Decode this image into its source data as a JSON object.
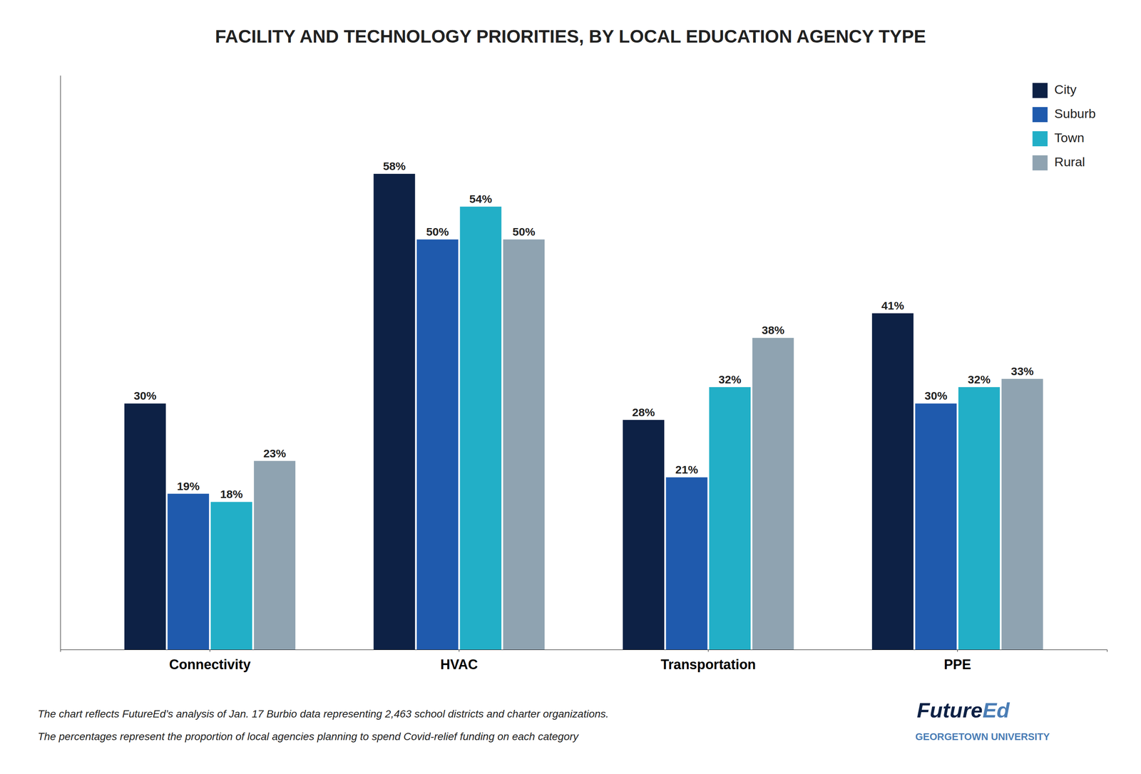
{
  "chart_data": {
    "type": "bar",
    "title": "FACILITY AND TECHNOLOGY PRIORITIES, BY LOCAL EDUCATION AGENCY TYPE",
    "categories": [
      "Connectivity",
      "HVAC",
      "Transportation",
      "PPE"
    ],
    "series": [
      {
        "name": "City",
        "color": "#0d2145",
        "values": [
          30,
          58,
          28,
          41
        ],
        "value_labels": [
          "30%",
          "58%",
          "28%",
          "41%"
        ]
      },
      {
        "name": "Suburb",
        "color": "#1f5aad",
        "values": [
          19,
          50,
          21,
          30
        ],
        "value_labels": [
          "19%",
          "50%",
          "21%",
          "30%"
        ]
      },
      {
        "name": "Town",
        "color": "#22afc7",
        "values": [
          18,
          54,
          32,
          32
        ],
        "value_labels": [
          "18%",
          "54%",
          "32%",
          "32%"
        ]
      },
      {
        "name": "Rural",
        "color": "#8fa3b1",
        "values": [
          23,
          50,
          38,
          33
        ],
        "value_labels": [
          "23%",
          "50%",
          "38%",
          "33%"
        ]
      }
    ],
    "ylim": [
      0,
      70
    ],
    "grid": false,
    "legend": "upper right",
    "data_labels": true,
    "tick_labels": "x",
    "annotations": [
      "The chart reflects FutureEd’s analysis of Jan. 17 Burbio data representing 2,463 school districts and charter organizations.",
      "The percentages represent the proportion of local agencies planning to spend Covid-relief funding on each category",
      "Future",
      "Ed",
      "GEORGETOWN UNIVERSITY"
    ]
  }
}
